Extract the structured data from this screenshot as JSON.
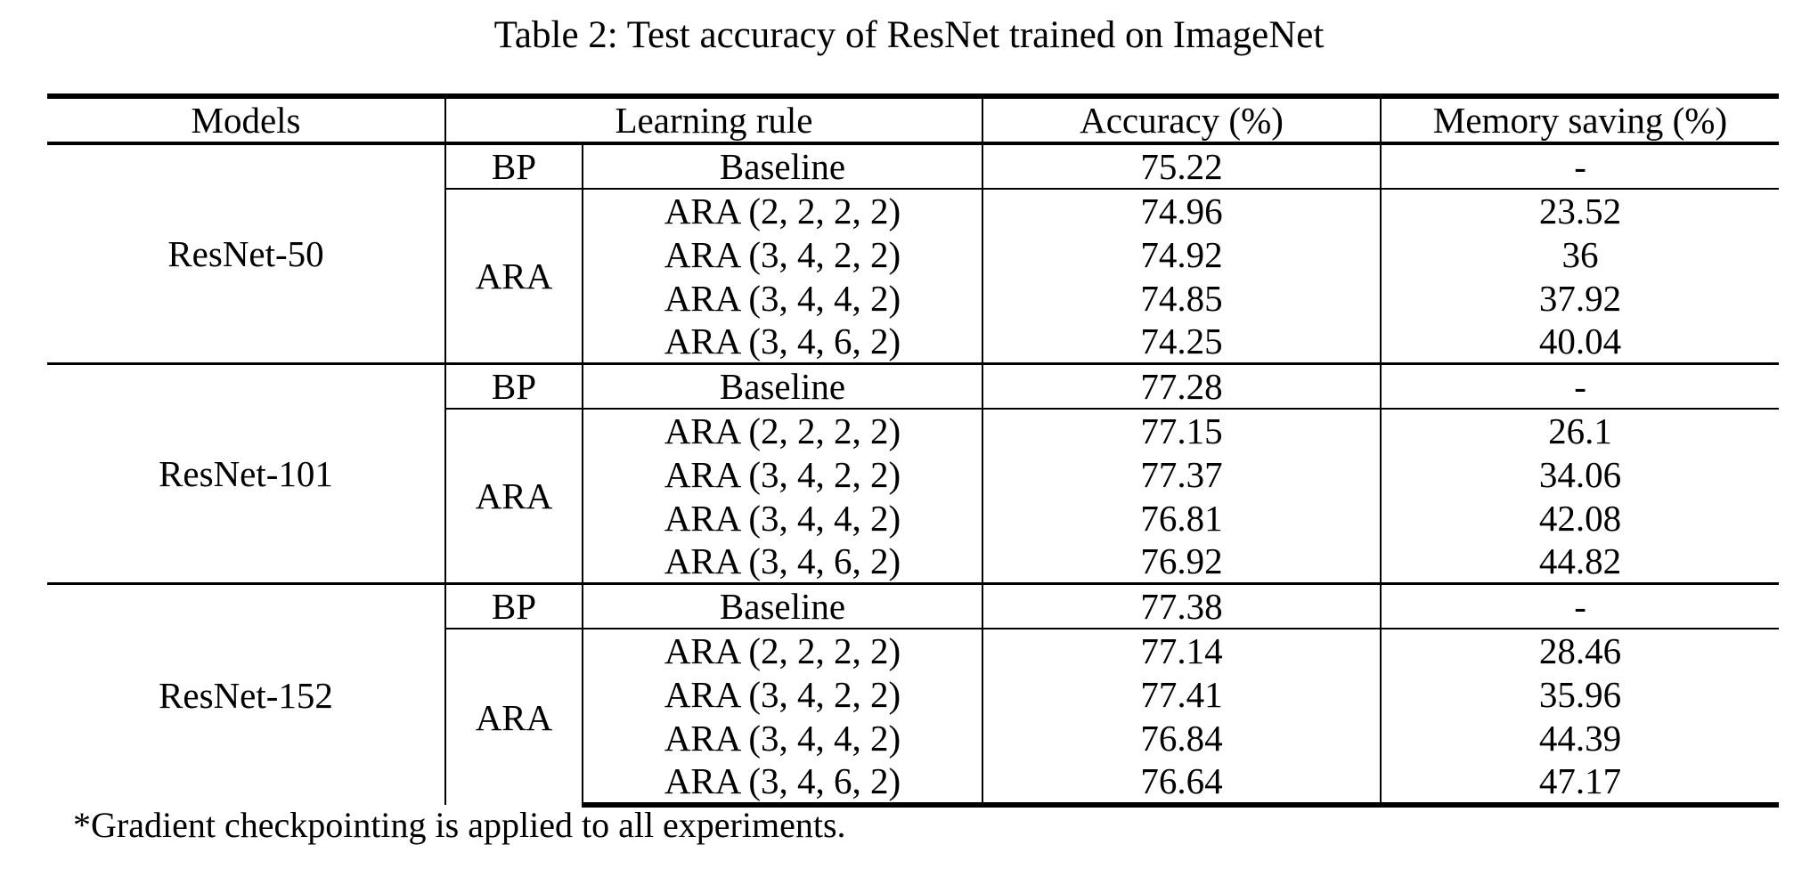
{
  "caption": "Table 2: Test accuracy of ResNet trained on ImageNet",
  "header": {
    "models": "Models",
    "learning_rule": "Learning rule",
    "accuracy": "Accuracy (%)",
    "memory_saving": "Memory saving (%)"
  },
  "groups": [
    {
      "model": "ResNet-50",
      "bp": {
        "rule": "BP",
        "variant": "Baseline",
        "accuracy": "75.22",
        "memory": "-"
      },
      "ara_rule": "ARA",
      "ara": [
        {
          "variant": "ARA (2, 2, 2, 2)",
          "accuracy": "74.96",
          "memory": "23.52"
        },
        {
          "variant": "ARA (3, 4, 2, 2)",
          "accuracy": "74.92",
          "memory": "36"
        },
        {
          "variant": "ARA (3, 4, 4, 2)",
          "accuracy": "74.85",
          "memory": "37.92"
        },
        {
          "variant": "ARA (3, 4, 6, 2)",
          "accuracy": "74.25",
          "memory": "40.04"
        }
      ]
    },
    {
      "model": "ResNet-101",
      "bp": {
        "rule": "BP",
        "variant": "Baseline",
        "accuracy": "77.28",
        "memory": "-"
      },
      "ara_rule": "ARA",
      "ara": [
        {
          "variant": "ARA (2, 2, 2, 2)",
          "accuracy": "77.15",
          "memory": "26.1"
        },
        {
          "variant": "ARA (3, 4, 2, 2)",
          "accuracy": "77.37",
          "memory": "34.06"
        },
        {
          "variant": "ARA (3, 4, 4, 2)",
          "accuracy": "76.81",
          "memory": "42.08"
        },
        {
          "variant": "ARA (3, 4, 6, 2)",
          "accuracy": "76.92",
          "memory": "44.82"
        }
      ]
    },
    {
      "model": "ResNet-152",
      "bp": {
        "rule": "BP",
        "variant": "Baseline",
        "accuracy": "77.38",
        "memory": "-"
      },
      "ara_rule": "ARA",
      "ara": [
        {
          "variant": "ARA (2, 2, 2, 2)",
          "accuracy": "77.14",
          "memory": "28.46"
        },
        {
          "variant": "ARA (3, 4, 2, 2)",
          "accuracy": "77.41",
          "memory": "35.96"
        },
        {
          "variant": "ARA (3, 4, 4, 2)",
          "accuracy": "76.84",
          "memory": "44.39"
        },
        {
          "variant": "ARA (3, 4, 6, 2)",
          "accuracy": "76.64",
          "memory": "47.17"
        }
      ]
    }
  ],
  "footnote": "*Gradient checkpointing is applied to all experiments."
}
